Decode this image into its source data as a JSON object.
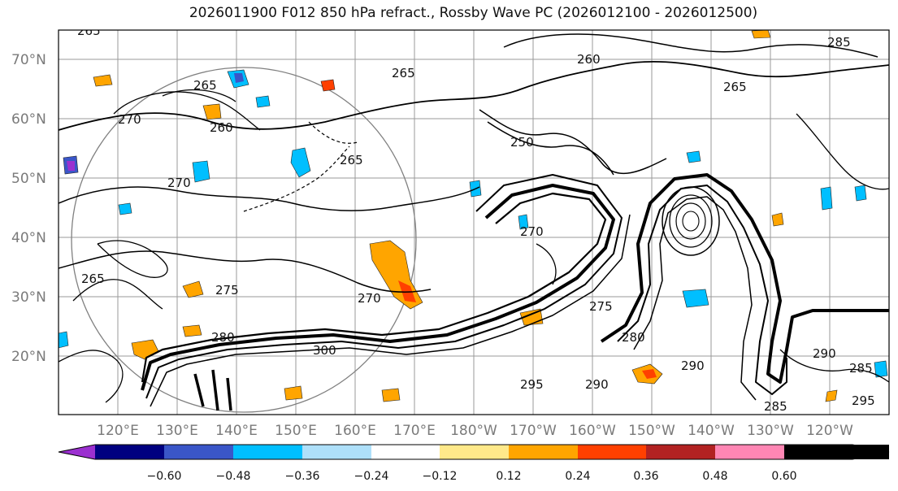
{
  "title": "2026011900 F012 850 hPa refract., Rossby Wave PC (2026012100 - 2026012500)",
  "lat_labels": [
    "70°N",
    "60°N",
    "50°N",
    "40°N",
    "30°N",
    "20°N"
  ],
  "lon_labels": [
    "120°E",
    "130°E",
    "140°E",
    "150°E",
    "160°E",
    "170°E",
    "180°W",
    "170°W",
    "160°W",
    "150°W",
    "140°W",
    "130°W",
    "120°W"
  ],
  "contour_labels": [
    "265",
    "270",
    "265",
    "260",
    "265",
    "260",
    "270",
    "265",
    "250",
    "265",
    "270",
    "265",
    "275",
    "280",
    "285",
    "290",
    "295",
    "300",
    "270",
    "275",
    "280",
    "290",
    "285",
    "290",
    "295",
    "285"
  ],
  "colorbar": {
    "ticks": [
      "−0.60",
      "−0.48",
      "−0.36",
      "−0.24",
      "−0.12",
      "0.12",
      "0.24",
      "0.36",
      "0.48",
      "0.60"
    ],
    "colors": [
      "#9b30d0",
      "#000080",
      "#3a56c8",
      "#00bfff",
      "#aee0fa",
      "#ffffff",
      "#ffe98a",
      "#ffa500",
      "#ff4000",
      "#b22222",
      "#ff86b4"
    ]
  }
}
